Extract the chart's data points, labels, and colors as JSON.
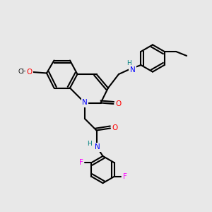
{
  "background_color": "#e8e8e8",
  "title": "",
  "atoms": {
    "colors": {
      "C": "#000000",
      "N": "#0000ff",
      "O": "#ff0000",
      "F": "#ff00ff",
      "H": "#008080"
    }
  },
  "bond_color": "#000000",
  "bond_width": 1.5,
  "figsize": [
    3.0,
    3.0
  ],
  "dpi": 100
}
